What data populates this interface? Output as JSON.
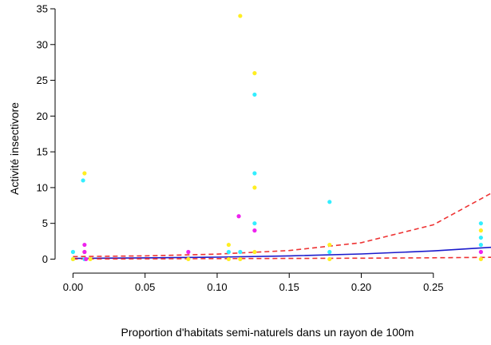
{
  "chart_data": {
    "type": "scatter",
    "xlabel": "Proportion d'habitats semi-naturels dans un rayon de 100m",
    "ylabel": "Activité insectivore",
    "xlim": [
      -0.008,
      0.29
    ],
    "ylim": [
      -1.4,
      35
    ],
    "x_ticks": [
      {
        "value": 0.0,
        "label": "0.00"
      },
      {
        "value": 0.05,
        "label": "0.05"
      },
      {
        "value": 0.1,
        "label": "0.10"
      },
      {
        "value": 0.15,
        "label": "0.15"
      },
      {
        "value": 0.2,
        "label": "0.20"
      },
      {
        "value": 0.25,
        "label": "0.25"
      }
    ],
    "y_ticks": [
      {
        "value": 0,
        "label": "0"
      },
      {
        "value": 5,
        "label": "5"
      },
      {
        "value": 10,
        "label": "10"
      },
      {
        "value": 15,
        "label": "15"
      },
      {
        "value": 20,
        "label": "20"
      },
      {
        "value": 25,
        "label": "25"
      },
      {
        "value": 30,
        "label": "30"
      },
      {
        "value": 35,
        "label": "35"
      }
    ],
    "grid": false,
    "colors": {
      "cyan": "#33eeff",
      "yellow": "#ffee22",
      "magenta": "#ee22ee",
      "fit": "#1a1acc",
      "ci": "#ee3333",
      "axis": "#000000"
    },
    "series": [
      {
        "color": "cyan",
        "points": [
          [
            0.0,
            1
          ],
          [
            0.0,
            0
          ],
          [
            0.007,
            11
          ],
          [
            0.008,
            0
          ],
          [
            0.108,
            1
          ],
          [
            0.116,
            1
          ],
          [
            0.126,
            23
          ],
          [
            0.126,
            12
          ],
          [
            0.126,
            5
          ],
          [
            0.178,
            8
          ],
          [
            0.178,
            1
          ],
          [
            0.283,
            5
          ],
          [
            0.283,
            3
          ],
          [
            0.283,
            2
          ]
        ]
      },
      {
        "color": "yellow",
        "points": [
          [
            0.0,
            0
          ],
          [
            0.008,
            12
          ],
          [
            0.008,
            1
          ],
          [
            0.012,
            0
          ],
          [
            0.08,
            0
          ],
          [
            0.108,
            2
          ],
          [
            0.108,
            0
          ],
          [
            0.116,
            34
          ],
          [
            0.116,
            0
          ],
          [
            0.126,
            26
          ],
          [
            0.126,
            10
          ],
          [
            0.126,
            1
          ],
          [
            0.178,
            2
          ],
          [
            0.178,
            0
          ],
          [
            0.283,
            4
          ],
          [
            0.283,
            0
          ]
        ]
      },
      {
        "color": "magenta",
        "points": [
          [
            0.008,
            2
          ],
          [
            0.008,
            1
          ],
          [
            0.009,
            0
          ],
          [
            0.08,
            1
          ],
          [
            0.115,
            6
          ],
          [
            0.126,
            4
          ],
          [
            0.283,
            1
          ]
        ]
      }
    ],
    "curves": [
      {
        "role": "fit",
        "style": "solid",
        "x": [
          0.0,
          0.05,
          0.1,
          0.15,
          0.2,
          0.25,
          0.29
        ],
        "y": [
          0.1,
          0.17,
          0.28,
          0.45,
          0.72,
          1.15,
          1.65
        ]
      },
      {
        "role": "ci-upper",
        "style": "dashed",
        "x": [
          0.0,
          0.05,
          0.1,
          0.15,
          0.2,
          0.25,
          0.29
        ],
        "y": [
          0.35,
          0.45,
          0.7,
          1.2,
          2.3,
          4.8,
          9.2
        ]
      },
      {
        "role": "ci-lower",
        "style": "dashed",
        "x": [
          0.0,
          0.05,
          0.1,
          0.15,
          0.2,
          0.25,
          0.29
        ],
        "y": [
          0.02,
          0.04,
          0.07,
          0.1,
          0.13,
          0.18,
          0.25
        ]
      }
    ]
  }
}
